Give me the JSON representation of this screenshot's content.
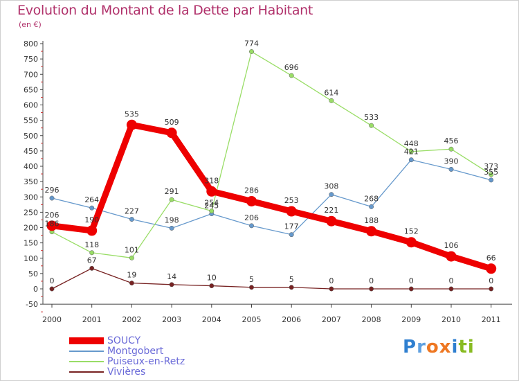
{
  "title": "Evolution du Montant de la Dette par Habitant",
  "subtitle": "(en €)",
  "chart_data": {
    "type": "line",
    "x": [
      "2000",
      "2001",
      "2002",
      "2003",
      "2004",
      "2005",
      "2006",
      "2007",
      "2008",
      "2009",
      "2010",
      "2011"
    ],
    "ylim": [
      -50,
      800
    ],
    "yticks": [
      -50,
      0,
      50,
      100,
      150,
      200,
      250,
      300,
      350,
      400,
      450,
      500,
      550,
      600,
      650,
      700,
      750,
      800
    ],
    "grid": false,
    "legend_position": "bottom-left",
    "series": [
      {
        "name": "SOUCY",
        "color": "#ee0000",
        "values": [
          206,
          190,
          535,
          509,
          318,
          286,
          253,
          221,
          188,
          152,
          106,
          66
        ]
      },
      {
        "name": "Montgobert",
        "color": "#6699cc",
        "values": [
          296,
          264,
          227,
          198,
          245,
          206,
          177,
          308,
          268,
          421,
          390,
          355
        ]
      },
      {
        "name": "Puiseux-en-Retz",
        "color": "#99dd66",
        "values": [
          186,
          118,
          101,
          291,
          254,
          774,
          696,
          614,
          533,
          448,
          456,
          373
        ]
      },
      {
        "name": "Vivières",
        "color": "#772222",
        "values": [
          0,
          67,
          19,
          14,
          10,
          5,
          5,
          0,
          0,
          0,
          0,
          0
        ]
      }
    ],
    "data_labels": [
      [
        "206",
        "190",
        "535",
        "509",
        "318",
        "286",
        "253",
        "221",
        "188",
        "152",
        "106",
        "66"
      ],
      [
        "296",
        "264",
        "227",
        "198",
        "245",
        "206",
        "177",
        "308",
        "268",
        "421",
        "390",
        "355"
      ],
      [
        "186",
        "118",
        "101",
        "291",
        "254",
        "774",
        "696",
        "614",
        "533",
        "448",
        "456",
        "373"
      ],
      [
        "0",
        "67",
        "19",
        "14",
        "10",
        "5",
        "5",
        "0",
        "0",
        "0",
        "0",
        "0"
      ]
    ]
  },
  "logo": {
    "text": "Proxiti",
    "letters": [
      "P",
      "r",
      "o",
      "x",
      "i",
      "t",
      "i"
    ],
    "colors": [
      "#2f7fd0",
      "#5fa0e0",
      "#ee7722",
      "#ee7722",
      "#2f7fd0",
      "#88bb22",
      "#88bb22"
    ]
  }
}
